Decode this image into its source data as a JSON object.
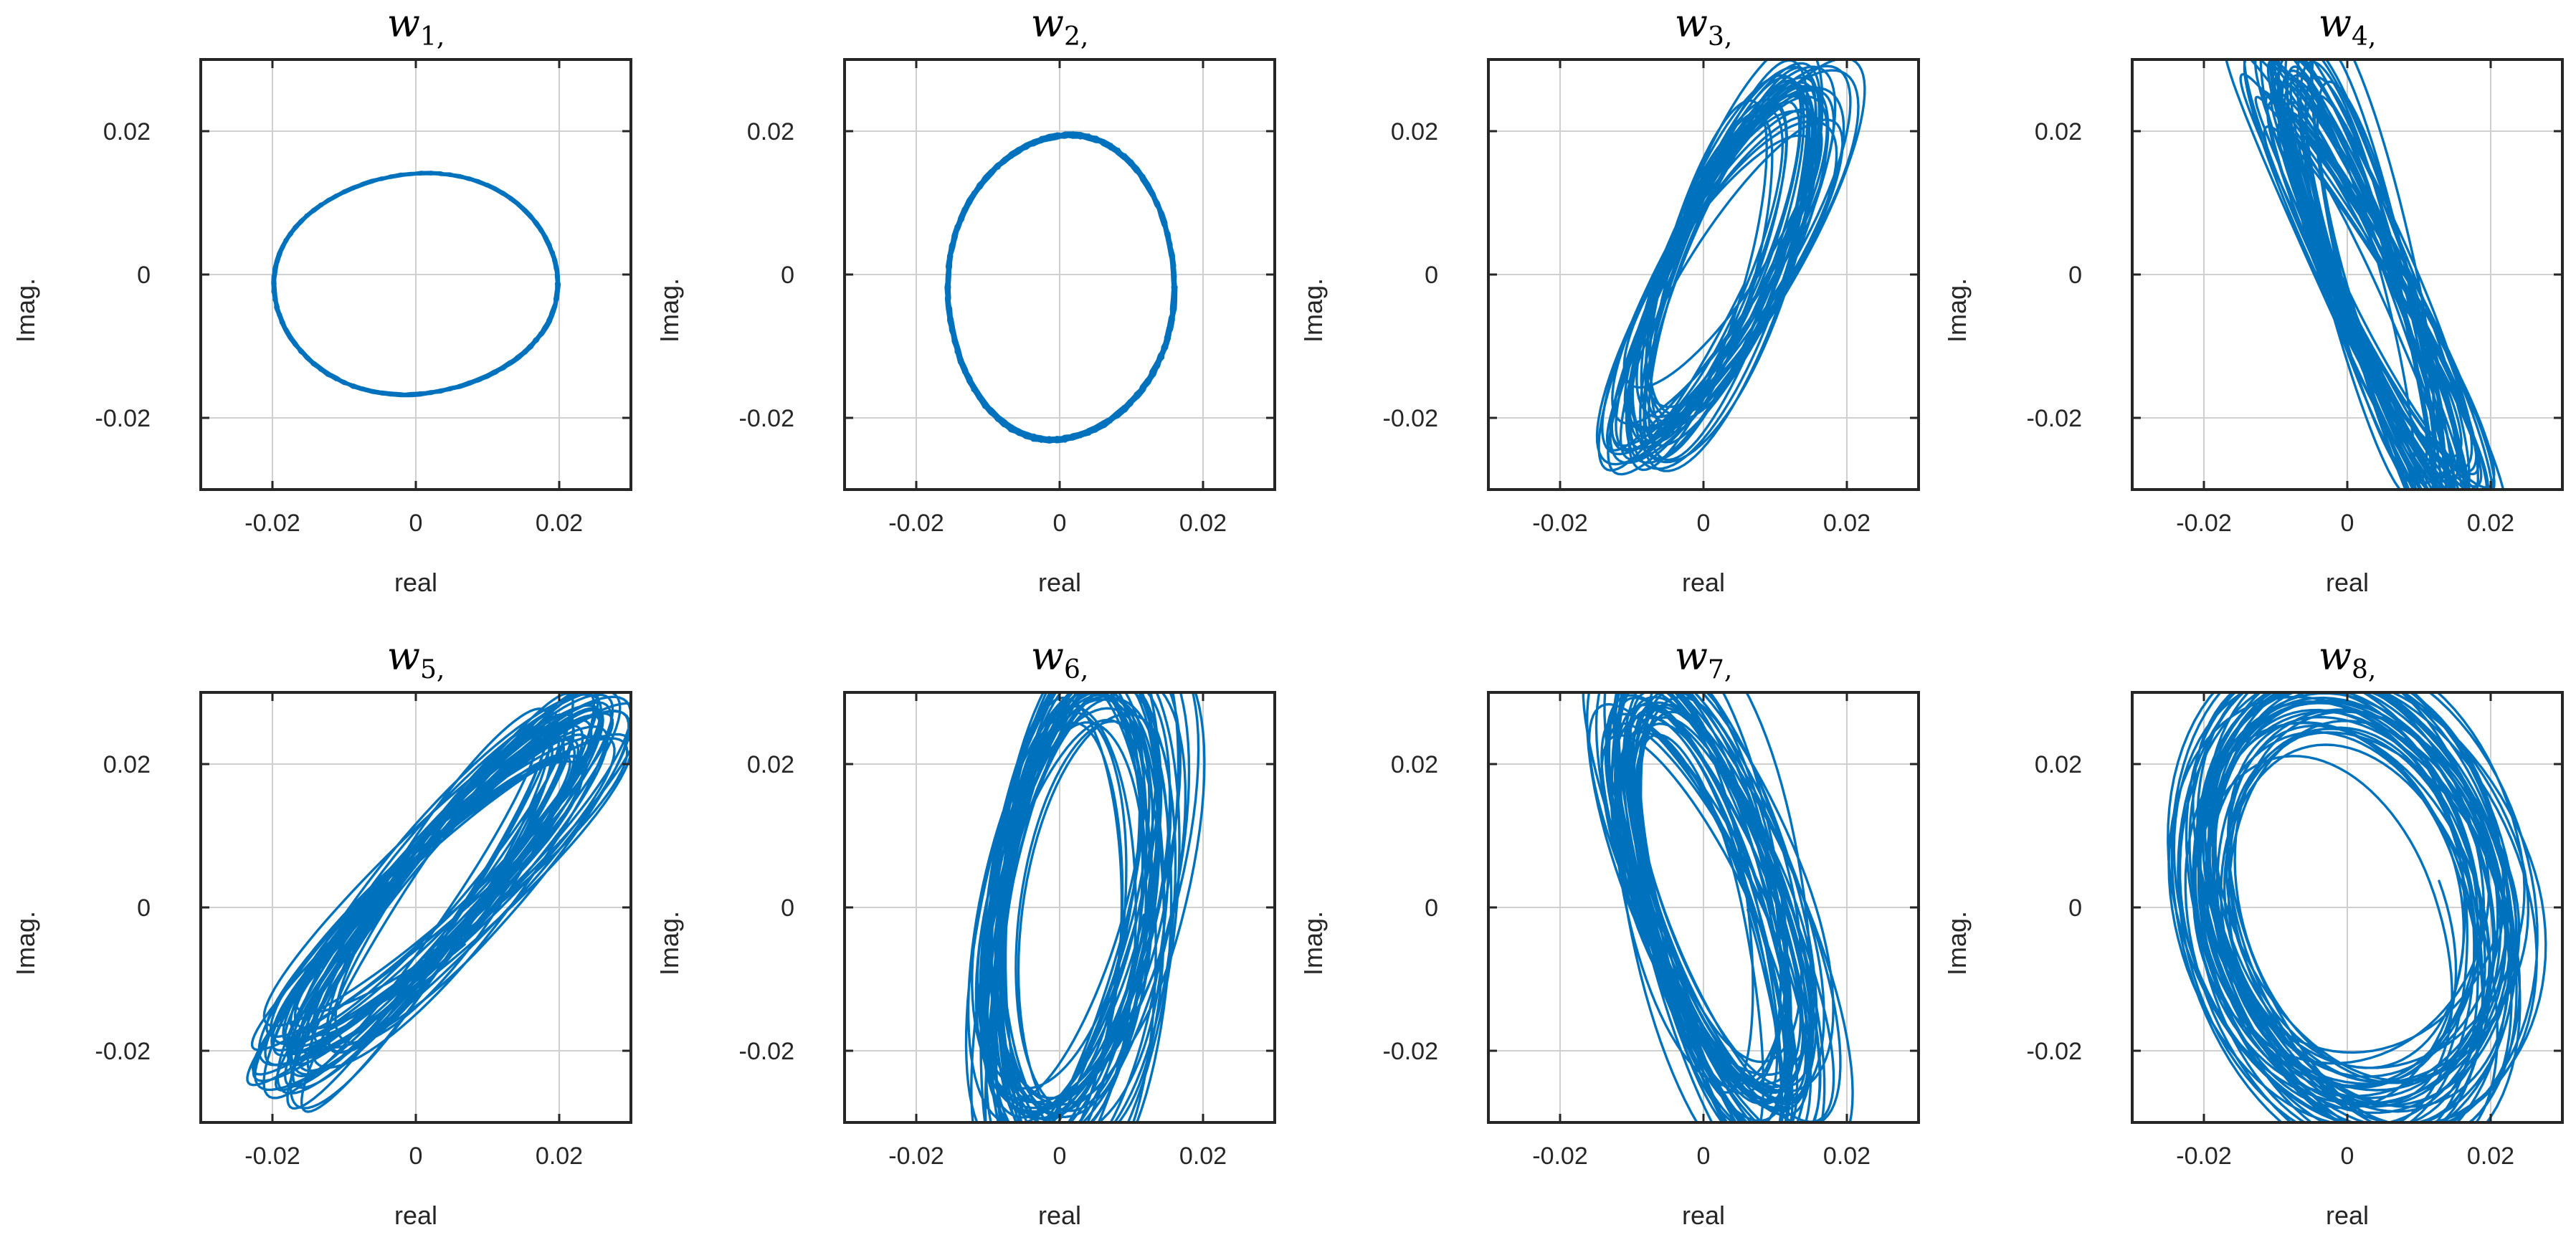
{
  "figure": {
    "accent_color": "#0072bd"
  },
  "chart_data": [
    {
      "type": "line",
      "title": "w1,",
      "title_symbol": "w",
      "title_index": "1",
      "xlabel": "real",
      "ylabel": "Imag.",
      "xlim": [
        -0.03,
        0.03
      ],
      "ylim": [
        -0.03,
        0.03
      ],
      "xticks": [
        -0.02,
        0,
        0.02
      ],
      "yticks": [
        -0.02,
        0,
        0.02
      ],
      "xtick_labels": [
        "-0.02",
        "0",
        "0.02"
      ],
      "ytick_labels": [
        "-0.02",
        "0",
        "0.02"
      ],
      "grid": true,
      "trajectory": {
        "kind": "ring",
        "cx": 0.0,
        "cy": -0.0013,
        "rx": 0.0198,
        "ry": 0.0154,
        "spread": 0.0007,
        "loops": 40
      }
    },
    {
      "type": "line",
      "title": "w2,",
      "title_symbol": "w",
      "title_index": "2",
      "xlabel": "real",
      "ylabel": "Imag.",
      "xlim": [
        -0.03,
        0.03
      ],
      "ylim": [
        -0.03,
        0.03
      ],
      "xticks": [
        -0.02,
        0,
        0.02
      ],
      "yticks": [
        -0.02,
        0,
        0.02
      ],
      "xtick_labels": [
        "-0.02",
        "0",
        "0.02"
      ],
      "ytick_labels": [
        "-0.02",
        "0",
        "0.02"
      ],
      "grid": true,
      "trajectory": {
        "kind": "ring",
        "cx": 0.0002,
        "cy": -0.0018,
        "rx": 0.0158,
        "ry": 0.0212,
        "spread": 0.0009,
        "loops": 40
      }
    },
    {
      "type": "line",
      "title": "w3,",
      "title_symbol": "w",
      "title_index": "3",
      "xlabel": "real",
      "ylabel": "Imag.",
      "xlim": [
        -0.03,
        0.03
      ],
      "ylim": [
        -0.03,
        0.03
      ],
      "xticks": [
        -0.02,
        0,
        0.02
      ],
      "yticks": [
        -0.02,
        0,
        0.02
      ],
      "xtick_labels": [
        "-0.02",
        "0",
        "0.02"
      ],
      "ytick_labels": [
        "-0.02",
        "0",
        "0.02"
      ],
      "grid": true,
      "trajectory": {
        "kind": "tilted",
        "cx": 0.0025,
        "cy": 0.0015,
        "rx": 0.0075,
        "ry": 0.028,
        "angle": -0.42,
        "spread": 0.004,
        "loops": 34
      }
    },
    {
      "type": "line",
      "title": "w4,",
      "title_symbol": "w",
      "title_index": "4",
      "xlabel": "real",
      "ylabel": "Imag.",
      "xlim": [
        -0.03,
        0.03
      ],
      "ylim": [
        -0.03,
        0.03
      ],
      "xticks": [
        -0.02,
        0,
        0.02
      ],
      "yticks": [
        -0.02,
        0,
        0.02
      ],
      "xtick_labels": [
        "-0.02",
        "0",
        "0.02"
      ],
      "ytick_labels": [
        "-0.02",
        "0",
        "0.02"
      ],
      "grid": true,
      "trajectory": {
        "kind": "tilted",
        "cx": 0.003,
        "cy": -0.002,
        "rx": 0.0045,
        "ry": 0.033,
        "angle": 0.38,
        "spread": 0.004,
        "loops": 38
      }
    },
    {
      "type": "line",
      "title": "w5,",
      "title_symbol": "w",
      "title_index": "5",
      "xlabel": "real",
      "ylabel": "Imag.",
      "xlim": [
        -0.03,
        0.03
      ],
      "ylim": [
        -0.03,
        0.03
      ],
      "xticks": [
        -0.02,
        0,
        0.02
      ],
      "yticks": [
        -0.02,
        0,
        0.02
      ],
      "xtick_labels": [
        "-0.02",
        "0",
        "0.02"
      ],
      "ytick_labels": [
        "-0.02",
        "0",
        "0.02"
      ],
      "grid": true,
      "trajectory": {
        "kind": "tilted",
        "cx": 0.003,
        "cy": 0.002,
        "rx": 0.006,
        "ry": 0.032,
        "angle": -0.72,
        "spread": 0.005,
        "loops": 40
      }
    },
    {
      "type": "line",
      "title": "w6,",
      "title_symbol": "w",
      "title_index": "6",
      "xlabel": "real",
      "ylabel": "Imag.",
      "xlim": [
        -0.03,
        0.03
      ],
      "ylim": [
        -0.03,
        0.03
      ],
      "xticks": [
        -0.02,
        0,
        0.02
      ],
      "yticks": [
        -0.02,
        0,
        0.02
      ],
      "xtick_labels": [
        "-0.02",
        "0",
        "0.02"
      ],
      "ytick_labels": [
        "-0.02",
        "0",
        "0.02"
      ],
      "grid": true,
      "trajectory": {
        "kind": "tilted",
        "cx": 0.002,
        "cy": 0.0,
        "rx": 0.011,
        "ry": 0.034,
        "angle": -0.12,
        "spread": 0.006,
        "loops": 40
      }
    },
    {
      "type": "line",
      "title": "w7,",
      "title_symbol": "w",
      "title_index": "7",
      "xlabel": "real",
      "ylabel": "Imag.",
      "xlim": [
        -0.03,
        0.03
      ],
      "ylim": [
        -0.03,
        0.03
      ],
      "xticks": [
        -0.02,
        0,
        0.02
      ],
      "yticks": [
        -0.02,
        0,
        0.02
      ],
      "xtick_labels": [
        "-0.02",
        "0",
        "0.02"
      ],
      "ytick_labels": [
        "-0.02",
        "0",
        "0.02"
      ],
      "grid": true,
      "trajectory": {
        "kind": "tilted",
        "cx": 0.001,
        "cy": 0.0,
        "rx": 0.009,
        "ry": 0.032,
        "angle": 0.3,
        "spread": 0.006,
        "loops": 44
      }
    },
    {
      "type": "line",
      "title": "w8,",
      "title_symbol": "w",
      "title_index": "8",
      "xlabel": "real",
      "ylabel": "Imag.",
      "xlim": [
        -0.03,
        0.03
      ],
      "ylim": [
        -0.03,
        0.03
      ],
      "xticks": [
        -0.02,
        0,
        0.02
      ],
      "yticks": [
        -0.02,
        0,
        0.02
      ],
      "xtick_labels": [
        "-0.02",
        "0",
        "0.02"
      ],
      "ytick_labels": [
        "-0.02",
        "0",
        "0.02"
      ],
      "grid": true,
      "trajectory": {
        "kind": "tilted",
        "cx": 0.001,
        "cy": 0.0,
        "rx": 0.02,
        "ry": 0.03,
        "angle": 0.25,
        "spread": 0.008,
        "loops": 44
      }
    }
  ]
}
